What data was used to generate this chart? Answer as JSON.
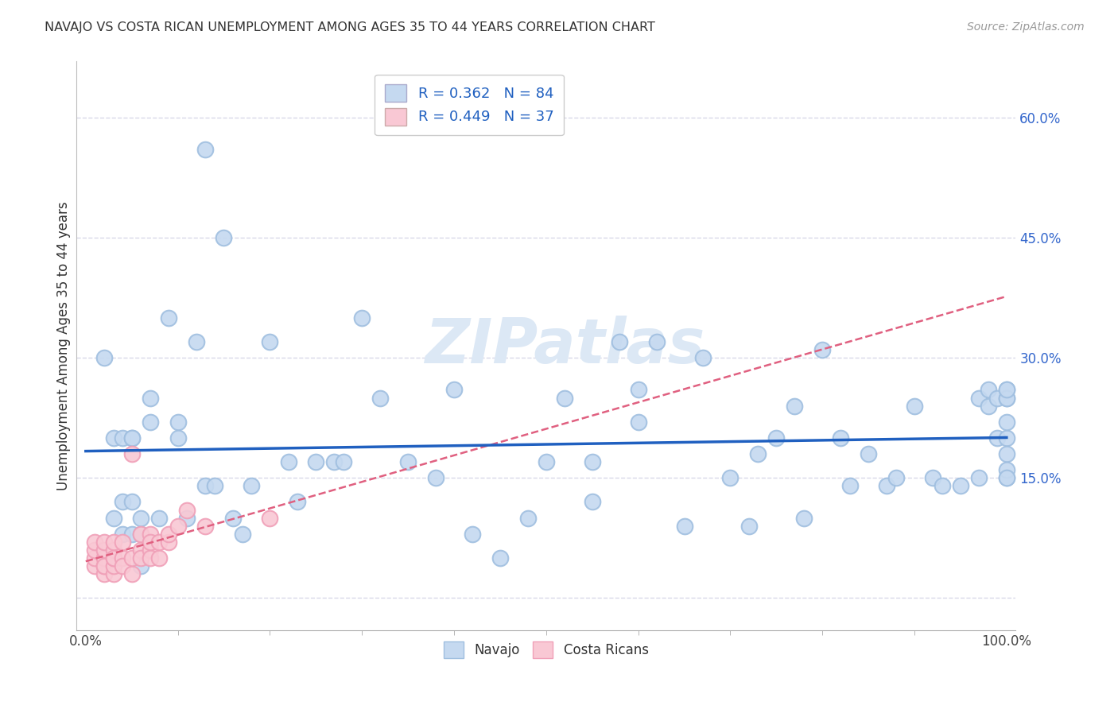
{
  "title": "NAVAJO VS COSTA RICAN UNEMPLOYMENT AMONG AGES 35 TO 44 YEARS CORRELATION CHART",
  "source": "Source: ZipAtlas.com",
  "ylabel": "Unemployment Among Ages 35 to 44 years",
  "xlim": [
    -0.01,
    1.01
  ],
  "ylim": [
    -0.04,
    0.67
  ],
  "xtick_positions": [
    0.0,
    1.0
  ],
  "xtick_labels": [
    "0.0%",
    "100.0%"
  ],
  "ytick_positions": [
    0.0,
    0.15,
    0.3,
    0.45,
    0.6
  ],
  "ytick_labels": [
    "",
    "15.0%",
    "30.0%",
    "45.0%",
    "60.0%"
  ],
  "navajo_R": 0.362,
  "navajo_N": 84,
  "costa_R": 0.449,
  "costa_N": 37,
  "navajo_color_face": "#c5d9f0",
  "navajo_color_edge": "#a0bfe0",
  "costa_color_face": "#f9c8d4",
  "costa_color_edge": "#f0a0b8",
  "navajo_line_color": "#2060c0",
  "costa_line_color": "#e06080",
  "legend_text_color": "#2060c0",
  "watermark_text": "ZIPatlas",
  "watermark_color": "#dce8f5",
  "background_color": "#ffffff",
  "grid_color": "#d8d8e8",
  "navajo_x": [
    0.02,
    0.03,
    0.03,
    0.04,
    0.04,
    0.04,
    0.05,
    0.05,
    0.05,
    0.05,
    0.06,
    0.06,
    0.06,
    0.07,
    0.07,
    0.08,
    0.09,
    0.1,
    0.1,
    0.11,
    0.12,
    0.13,
    0.13,
    0.14,
    0.15,
    0.16,
    0.17,
    0.18,
    0.2,
    0.22,
    0.23,
    0.25,
    0.27,
    0.28,
    0.3,
    0.32,
    0.35,
    0.38,
    0.4,
    0.42,
    0.45,
    0.48,
    0.5,
    0.52,
    0.55,
    0.55,
    0.58,
    0.6,
    0.6,
    0.62,
    0.65,
    0.67,
    0.7,
    0.72,
    0.73,
    0.75,
    0.77,
    0.78,
    0.8,
    0.82,
    0.83,
    0.85,
    0.87,
    0.88,
    0.9,
    0.92,
    0.93,
    0.95,
    0.97,
    0.97,
    0.98,
    0.98,
    0.99,
    0.99,
    1.0,
    1.0,
    1.0,
    1.0,
    1.0,
    1.0,
    1.0,
    1.0,
    1.0,
    1.0
  ],
  "navajo_y": [
    0.3,
    0.1,
    0.2,
    0.08,
    0.12,
    0.2,
    0.08,
    0.12,
    0.2,
    0.2,
    0.08,
    0.1,
    0.04,
    0.25,
    0.22,
    0.1,
    0.35,
    0.22,
    0.2,
    0.1,
    0.32,
    0.56,
    0.14,
    0.14,
    0.45,
    0.1,
    0.08,
    0.14,
    0.32,
    0.17,
    0.12,
    0.17,
    0.17,
    0.17,
    0.35,
    0.25,
    0.17,
    0.15,
    0.26,
    0.08,
    0.05,
    0.1,
    0.17,
    0.25,
    0.17,
    0.12,
    0.32,
    0.26,
    0.22,
    0.32,
    0.09,
    0.3,
    0.15,
    0.09,
    0.18,
    0.2,
    0.24,
    0.1,
    0.31,
    0.2,
    0.14,
    0.18,
    0.14,
    0.15,
    0.24,
    0.15,
    0.14,
    0.14,
    0.15,
    0.25,
    0.24,
    0.26,
    0.2,
    0.25,
    0.25,
    0.26,
    0.15,
    0.2,
    0.22,
    0.18,
    0.16,
    0.25,
    0.15,
    0.26
  ],
  "costa_x": [
    0.01,
    0.01,
    0.01,
    0.01,
    0.02,
    0.02,
    0.02,
    0.02,
    0.02,
    0.02,
    0.03,
    0.03,
    0.03,
    0.03,
    0.03,
    0.03,
    0.04,
    0.04,
    0.04,
    0.05,
    0.05,
    0.05,
    0.06,
    0.06,
    0.06,
    0.07,
    0.07,
    0.07,
    0.07,
    0.08,
    0.08,
    0.09,
    0.09,
    0.1,
    0.11,
    0.13,
    0.2
  ],
  "costa_y": [
    0.04,
    0.05,
    0.06,
    0.07,
    0.03,
    0.04,
    0.05,
    0.06,
    0.07,
    0.04,
    0.03,
    0.04,
    0.05,
    0.06,
    0.07,
    0.05,
    0.05,
    0.07,
    0.04,
    0.03,
    0.18,
    0.05,
    0.06,
    0.08,
    0.05,
    0.06,
    0.08,
    0.05,
    0.07,
    0.05,
    0.07,
    0.07,
    0.08,
    0.09,
    0.11,
    0.09,
    0.1
  ],
  "figsize": [
    14.06,
    8.92
  ],
  "dpi": 100
}
